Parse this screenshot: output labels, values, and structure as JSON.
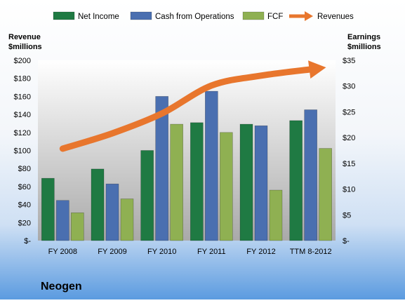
{
  "chart_data": {
    "type": "bar",
    "categories": [
      "FY 2008",
      "FY 2009",
      "FY 2010",
      "FY 2011",
      "FY 2012",
      "TTM 8-2012"
    ],
    "series": [
      {
        "name": "Net Income",
        "axis": "right",
        "color": "#1f7a43",
        "values": [
          12.1,
          13.9,
          17.5,
          22.9,
          22.6,
          23.3
        ]
      },
      {
        "name": "Cash from Operations",
        "axis": "right",
        "color": "#4a6fb0",
        "values": [
          7.8,
          11.0,
          28.0,
          29.0,
          22.3,
          25.4
        ]
      },
      {
        "name": "FCF",
        "axis": "right",
        "color": "#8fb052",
        "values": [
          5.4,
          8.1,
          22.6,
          21.0,
          9.8,
          17.9
        ]
      },
      {
        "name": "Revenues",
        "axis": "left",
        "type": "line",
        "color": "#e8762d",
        "values": [
          102,
          119,
          141,
          172,
          183,
          190
        ]
      }
    ],
    "left_axis": {
      "title_line1": "Revenue",
      "title_line2": "$millions",
      "ylim": [
        0,
        200
      ],
      "ticks": [
        {
          "value": 200,
          "label": "$200"
        },
        {
          "value": 180,
          "label": "$180"
        },
        {
          "value": 160,
          "label": "$160"
        },
        {
          "value": 140,
          "label": "$140"
        },
        {
          "value": 120,
          "label": "$120"
        },
        {
          "value": 100,
          "label": "$100"
        },
        {
          "value": 80,
          "label": "$80"
        },
        {
          "value": 60,
          "label": "$60"
        },
        {
          "value": 40,
          "label": "$40"
        },
        {
          "value": 20,
          "label": "$20"
        },
        {
          "value": 0,
          "label": "$-"
        }
      ]
    },
    "right_axis": {
      "title_line1": "Earnings",
      "title_line2": "$millions",
      "ylim": [
        0,
        35
      ],
      "ticks": [
        {
          "value": 35,
          "label": "$35"
        },
        {
          "value": 30,
          "label": "$30"
        },
        {
          "value": 25,
          "label": "$25"
        },
        {
          "value": 20,
          "label": "$20"
        },
        {
          "value": 15,
          "label": "$15"
        },
        {
          "value": 10,
          "label": "$10"
        },
        {
          "value": 5,
          "label": "$5"
        },
        {
          "value": 0,
          "label": "$-"
        }
      ]
    },
    "legend_position": "top",
    "grid": false,
    "company": "Neogen"
  }
}
